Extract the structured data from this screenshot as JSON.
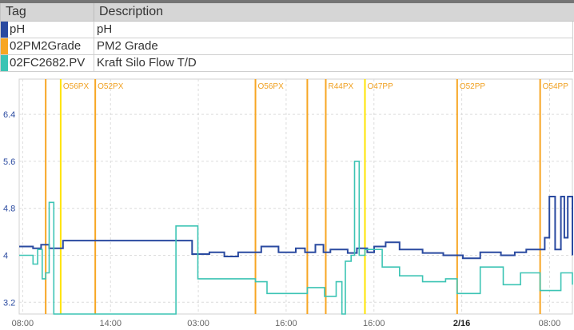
{
  "colors": {
    "ph": "#2a4aa0",
    "grade": "#f7a623",
    "flow": "#3cc4b4",
    "grade_marker_yellow": "#ffe400",
    "grid": "#dcdcdc",
    "axis_text": "#2a4aa0",
    "time_text": "#666666"
  },
  "legend": {
    "headers": {
      "tag": "Tag",
      "description": "Description"
    },
    "rows": [
      {
        "tag": "pH",
        "description": "pH",
        "color": "#2a4aa0"
      },
      {
        "tag": "02PM2Grade",
        "description": "PM2 Grade",
        "color": "#f7a623"
      },
      {
        "tag": "02FC2682.PV",
        "description": "Kraft Silo Flow T/D",
        "color": "#3cc4b4"
      }
    ]
  },
  "chart_data": {
    "type": "line",
    "y_ticks": [
      "3.2",
      "4",
      "4.8",
      "5.6",
      "6.4"
    ],
    "ylim": [
      3.0,
      7.0
    ],
    "x_ticks": [
      "08:00",
      "14:00",
      "03:00",
      "16:00",
      "16:00",
      "2/16",
      "08:00"
    ],
    "x_tick_bold": [
      false,
      false,
      false,
      false,
      false,
      true,
      false
    ],
    "xlim_hours": [
      0,
      48
    ],
    "grid": "dashed vertical and horizontal",
    "grade_markers": [
      {
        "hour": 2.3,
        "label": "",
        "color": "#f7a623"
      },
      {
        "hour": 3.6,
        "label": "O56PX",
        "color": "#ffe400"
      },
      {
        "hour": 6.6,
        "label": "O52PX",
        "color": "#f7a623"
      },
      {
        "hour": 20.5,
        "label": "O56PX",
        "color": "#f7a623"
      },
      {
        "hour": 25.0,
        "label": "",
        "color": "#f7a623"
      },
      {
        "hour": 26.6,
        "label": "R44PX",
        "color": "#f7a623"
      },
      {
        "hour": 30.0,
        "label": "O47PP",
        "color": "#ffe400"
      },
      {
        "hour": 38.0,
        "label": "O52PP",
        "color": "#f7a623"
      },
      {
        "hour": 45.2,
        "label": "O54PP",
        "color": "#f7a623"
      }
    ],
    "series": [
      {
        "key": "ph",
        "x": [
          0,
          1.2,
          1.9,
          2.6,
          3.8,
          5.5,
          8,
          10,
          13,
          14.3,
          15,
          16.5,
          17.8,
          19,
          21,
          22.5,
          24,
          24.8,
          25.7,
          26.4,
          27,
          28.5,
          29.3,
          30.2,
          30.8,
          31.8,
          33,
          35,
          36.8,
          38.5,
          40,
          41.8,
          43,
          44,
          45,
          45.6,
          46,
          46.5,
          47,
          47.3,
          47.6,
          48
        ],
        "y": [
          4.15,
          4.12,
          4.18,
          4.12,
          4.25,
          4.25,
          4.25,
          4.25,
          4.25,
          4.25,
          4.02,
          4.05,
          3.98,
          4.05,
          4.15,
          4.05,
          4.12,
          4.05,
          4.18,
          4.05,
          4.1,
          4.04,
          4.12,
          4.05,
          4.15,
          4.22,
          4.1,
          4.04,
          4.0,
          3.95,
          4.05,
          4.0,
          4.05,
          4.1,
          4.1,
          4.3,
          5.0,
          4.1,
          5.0,
          4.3,
          5.0,
          4.0
        ]
      },
      {
        "key": "flow",
        "x": [
          0,
          1.2,
          1.6,
          2.0,
          2.3,
          2.6,
          3.0,
          3.6,
          6.6,
          13.2,
          13.6,
          15.5,
          20.5,
          21.5,
          25.0,
          26.5,
          27.5,
          28.0,
          28.3,
          28.8,
          29.1,
          29.5,
          30.0,
          31.5,
          33.0,
          35.0,
          37.0,
          38.0,
          40.0,
          42.0,
          43.5,
          45.2,
          47.0,
          48.0
        ],
        "y": [
          4.0,
          3.85,
          4.1,
          3.6,
          3.7,
          4.9,
          3.0,
          3.0,
          3.0,
          3.0,
          4.5,
          3.6,
          3.55,
          3.35,
          3.45,
          3.3,
          3.55,
          3.0,
          3.9,
          4.0,
          5.6,
          4.0,
          4.1,
          3.8,
          3.65,
          3.55,
          3.6,
          3.35,
          3.8,
          3.5,
          3.7,
          3.4,
          3.7,
          3.5
        ]
      }
    ]
  }
}
